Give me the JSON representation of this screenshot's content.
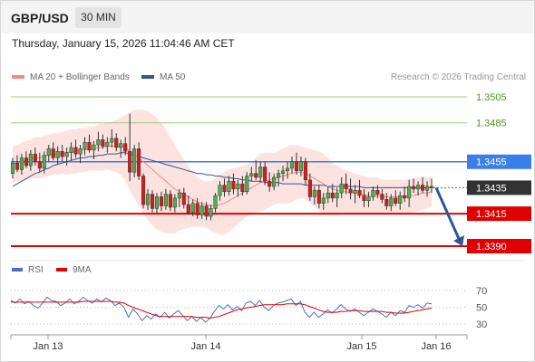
{
  "header": {
    "pair": "GBP/USD",
    "timeframe": "30 MIN"
  },
  "datetime": "Thursday, January 15, 2026 11:04:46 AM CET",
  "legend": {
    "ma20": {
      "label": "MA 20 + Bollinger Bands",
      "color": "#f28b82"
    },
    "ma50": {
      "label": "MA 50",
      "color": "#2f5597"
    },
    "credit": "Research © 2026 Trading Central"
  },
  "rsi_legend": {
    "rsi": {
      "label": "RSI",
      "color": "#4472c4"
    },
    "ma9": {
      "label": "9MA",
      "color": "#e00000"
    }
  },
  "chart_data": [
    {
      "type": "candlestick",
      "title": "",
      "ylim": [
        1.338,
        1.351
      ],
      "x_ticks": [
        "Jan 13",
        "Jan 14",
        "Jan 15",
        "Jan 16"
      ],
      "levels": [
        {
          "value": "1.3505",
          "kind": "target",
          "color": "#4a9a1e"
        },
        {
          "value": "1.3485",
          "kind": "target",
          "color": "#4a9a1e"
        },
        {
          "value": "1.3455",
          "kind": "resistance",
          "color": "#3a7ee8"
        },
        {
          "value": "1.3435",
          "kind": "last price",
          "color": "#333333"
        },
        {
          "value": "1.3415",
          "kind": "support",
          "color": "#e00000"
        },
        {
          "value": "1.3390",
          "kind": "support",
          "color": "#e00000"
        }
      ],
      "candles": [
        [
          1.3446,
          1.3458,
          1.3442,
          1.3454
        ],
        [
          1.3454,
          1.346,
          1.3447,
          1.3449
        ],
        [
          1.3449,
          1.3461,
          1.3445,
          1.3458
        ],
        [
          1.3458,
          1.3463,
          1.345,
          1.3452
        ],
        [
          1.3452,
          1.3464,
          1.3448,
          1.3461
        ],
        [
          1.3461,
          1.3466,
          1.3452,
          1.3455
        ],
        [
          1.3455,
          1.3462,
          1.3447,
          1.345
        ],
        [
          1.345,
          1.3463,
          1.3446,
          1.346
        ],
        [
          1.346,
          1.3468,
          1.3455,
          1.3465
        ],
        [
          1.3465,
          1.347,
          1.3456,
          1.3458
        ],
        [
          1.3458,
          1.3467,
          1.3453,
          1.3463
        ],
        [
          1.3463,
          1.3468,
          1.3455,
          1.3459
        ],
        [
          1.3459,
          1.3466,
          1.3452,
          1.3462
        ],
        [
          1.3462,
          1.347,
          1.3456,
          1.3466
        ],
        [
          1.3466,
          1.3472,
          1.3458,
          1.3461
        ],
        [
          1.3461,
          1.3468,
          1.3454,
          1.3465
        ],
        [
          1.3465,
          1.3474,
          1.346,
          1.347
        ],
        [
          1.347,
          1.3476,
          1.3462,
          1.3464
        ],
        [
          1.3464,
          1.3471,
          1.3457,
          1.3468
        ],
        [
          1.3468,
          1.3478,
          1.3463,
          1.3472
        ],
        [
          1.3472,
          1.3476,
          1.3465,
          1.3467
        ],
        [
          1.3467,
          1.3474,
          1.3462,
          1.347
        ],
        [
          1.347,
          1.348,
          1.3466,
          1.3473
        ],
        [
          1.3473,
          1.3477,
          1.3463,
          1.3466
        ],
        [
          1.3466,
          1.3472,
          1.3458,
          1.3469
        ],
        [
          1.3469,
          1.3474,
          1.346,
          1.3463
        ],
        [
          1.3463,
          1.3492,
          1.344,
          1.3447
        ],
        [
          1.3447,
          1.3468,
          1.3443,
          1.3465
        ],
        [
          1.3465,
          1.347,
          1.3441,
          1.3444
        ],
        [
          1.3444,
          1.3446,
          1.3419,
          1.3422
        ],
        [
          1.3422,
          1.3434,
          1.3418,
          1.343
        ],
        [
          1.343,
          1.3433,
          1.3416,
          1.3419
        ],
        [
          1.3419,
          1.3431,
          1.3415,
          1.3428
        ],
        [
          1.3428,
          1.3432,
          1.3417,
          1.3421
        ],
        [
          1.3421,
          1.3434,
          1.3418,
          1.343
        ],
        [
          1.343,
          1.3433,
          1.3417,
          1.342
        ],
        [
          1.342,
          1.343,
          1.3416,
          1.3427
        ],
        [
          1.3427,
          1.3434,
          1.342,
          1.3431
        ],
        [
          1.3431,
          1.3435,
          1.3419,
          1.3422
        ],
        [
          1.3422,
          1.3429,
          1.3414,
          1.3416
        ],
        [
          1.3416,
          1.3426,
          1.3413,
          1.3423
        ],
        [
          1.3423,
          1.3427,
          1.3411,
          1.3414
        ],
        [
          1.3414,
          1.3424,
          1.3411,
          1.3421
        ],
        [
          1.3421,
          1.3424,
          1.341,
          1.3413
        ],
        [
          1.3413,
          1.3422,
          1.341,
          1.3419
        ],
        [
          1.3419,
          1.3431,
          1.3416,
          1.3429
        ],
        [
          1.3429,
          1.344,
          1.3425,
          1.3437
        ],
        [
          1.3437,
          1.3442,
          1.3428,
          1.3432
        ],
        [
          1.3432,
          1.3444,
          1.3429,
          1.344
        ],
        [
          1.344,
          1.3446,
          1.343,
          1.3434
        ],
        [
          1.3434,
          1.3441,
          1.3428,
          1.3438
        ],
        [
          1.3438,
          1.3444,
          1.3429,
          1.3432
        ],
        [
          1.3432,
          1.3447,
          1.343,
          1.3444
        ],
        [
          1.3444,
          1.3451,
          1.344,
          1.3446
        ],
        [
          1.3446,
          1.3456,
          1.3441,
          1.3443
        ],
        [
          1.3443,
          1.3455,
          1.3439,
          1.3451
        ],
        [
          1.3451,
          1.3455,
          1.3437,
          1.344
        ],
        [
          1.344,
          1.3447,
          1.3432,
          1.3436
        ],
        [
          1.3436,
          1.3446,
          1.3433,
          1.3443
        ],
        [
          1.3443,
          1.3449,
          1.3436,
          1.3446
        ],
        [
          1.3446,
          1.3452,
          1.344,
          1.3448
        ],
        [
          1.3448,
          1.3455,
          1.3442,
          1.345
        ],
        [
          1.345,
          1.3459,
          1.3446,
          1.3455
        ],
        [
          1.3455,
          1.3462,
          1.3445,
          1.3448
        ],
        [
          1.3448,
          1.3459,
          1.3444,
          1.3455
        ],
        [
          1.3455,
          1.3458,
          1.3437,
          1.3441
        ],
        [
          1.3441,
          1.3446,
          1.3425,
          1.3428
        ],
        [
          1.3428,
          1.3436,
          1.3422,
          1.3433
        ],
        [
          1.3433,
          1.3437,
          1.3419,
          1.3423
        ],
        [
          1.3423,
          1.3431,
          1.3418,
          1.3427
        ],
        [
          1.3427,
          1.3436,
          1.3423,
          1.3431
        ],
        [
          1.3431,
          1.3438,
          1.3424,
          1.3427
        ],
        [
          1.3427,
          1.3435,
          1.342,
          1.3431
        ],
        [
          1.3431,
          1.3443,
          1.3427,
          1.3438
        ],
        [
          1.3438,
          1.3446,
          1.343,
          1.3434
        ],
        [
          1.3434,
          1.3442,
          1.3426,
          1.3431
        ],
        [
          1.3431,
          1.3437,
          1.3423,
          1.3433
        ],
        [
          1.3433,
          1.3441,
          1.3427,
          1.3429
        ],
        [
          1.3429,
          1.3434,
          1.342,
          1.3425
        ],
        [
          1.3425,
          1.3432,
          1.342,
          1.3428
        ],
        [
          1.3428,
          1.3436,
          1.3425,
          1.3433
        ],
        [
          1.3433,
          1.3437,
          1.3427,
          1.343
        ],
        [
          1.343,
          1.3434,
          1.3423,
          1.3426
        ],
        [
          1.3426,
          1.3431,
          1.3418,
          1.3421
        ],
        [
          1.3421,
          1.343,
          1.3417,
          1.3427
        ],
        [
          1.3427,
          1.3433,
          1.3421,
          1.3423
        ],
        [
          1.3423,
          1.3432,
          1.3418,
          1.3429
        ],
        [
          1.3429,
          1.3436,
          1.3424,
          1.3427
        ],
        [
          1.3427,
          1.3441,
          1.342,
          1.3436
        ],
        [
          1.3436,
          1.3442,
          1.3431,
          1.3434
        ],
        [
          1.3434,
          1.344,
          1.3429,
          1.3437
        ],
        [
          1.3437,
          1.3443,
          1.3431,
          1.3433
        ],
        [
          1.3433,
          1.344,
          1.3428,
          1.3436
        ],
        [
          1.3436,
          1.3442,
          1.3431,
          1.3435
        ]
      ],
      "ma20": [
        1.3453,
        1.3454,
        1.3455,
        1.3456,
        1.3457,
        1.3458,
        1.3458,
        1.3459,
        1.346,
        1.3461,
        1.3461,
        1.3462,
        1.3462,
        1.3463,
        1.3463,
        1.3464,
        1.3464,
        1.3465,
        1.3465,
        1.3466,
        1.3466,
        1.3467,
        1.3467,
        1.3467,
        1.3467,
        1.3466,
        1.3463,
        1.3461,
        1.3458,
        1.3455,
        1.3452,
        1.3449,
        1.3446,
        1.3443,
        1.344,
        1.3437,
        1.3434,
        1.3432,
        1.343,
        1.3428,
        1.3426,
        1.3424,
        1.3423,
        1.3422,
        1.3421,
        1.3421,
        1.3422,
        1.3423,
        1.3425,
        1.3427,
        1.3429,
        1.3431,
        1.3433,
        1.3435,
        1.3437,
        1.3439,
        1.344,
        1.3441,
        1.3442,
        1.3443,
        1.3444,
        1.3445,
        1.3446,
        1.3447,
        1.3447,
        1.3446,
        1.3444,
        1.3442,
        1.344,
        1.3438,
        1.3436,
        1.3434,
        1.3433,
        1.3432,
        1.3432,
        1.3431,
        1.3431,
        1.343,
        1.343,
        1.3429,
        1.3429,
        1.3429,
        1.3428,
        1.3428,
        1.3428,
        1.3428,
        1.3428,
        1.3428,
        1.3429,
        1.3429,
        1.343,
        1.3431,
        1.3431,
        1.3432
      ],
      "bb_width": [
        0.0014,
        0.0014,
        0.0015,
        0.0015,
        0.0015,
        0.0016,
        0.0016,
        0.0016,
        0.0016,
        0.0016,
        0.0016,
        0.0016,
        0.0017,
        0.0017,
        0.0017,
        0.0017,
        0.0017,
        0.0017,
        0.0017,
        0.0018,
        0.0018,
        0.0018,
        0.0019,
        0.002,
        0.0022,
        0.0025,
        0.003,
        0.0034,
        0.0037,
        0.004,
        0.0042,
        0.0043,
        0.0043,
        0.0042,
        0.004,
        0.0037,
        0.0034,
        0.003,
        0.0027,
        0.0024,
        0.0021,
        0.0019,
        0.0018,
        0.0018,
        0.0019,
        0.0021,
        0.0023,
        0.0024,
        0.0024,
        0.0023,
        0.0022,
        0.0021,
        0.002,
        0.002,
        0.0021,
        0.0022,
        0.0022,
        0.0021,
        0.002,
        0.002,
        0.0021,
        0.0022,
        0.0022,
        0.0021,
        0.002,
        0.002,
        0.0021,
        0.0022,
        0.0023,
        0.0023,
        0.0022,
        0.002,
        0.0019,
        0.0018,
        0.0017,
        0.0016,
        0.0015,
        0.0015,
        0.0014,
        0.0014,
        0.0014,
        0.0014,
        0.0013,
        0.0013,
        0.0013,
        0.0013,
        0.0013,
        0.0013,
        0.0013,
        0.0013,
        0.0013,
        0.0013,
        0.0012,
        0.0012
      ],
      "ma50": [
        1.3436,
        1.3438,
        1.344,
        1.3442,
        1.3444,
        1.3446,
        1.3447,
        1.3449,
        1.345,
        1.3452,
        1.3453,
        1.3454,
        1.3455,
        1.3456,
        1.3457,
        1.3458,
        1.3458,
        1.3459,
        1.3459,
        1.346,
        1.346,
        1.3461,
        1.3461,
        1.3461,
        1.3462,
        1.3462,
        1.3461,
        1.346,
        1.3459,
        1.3458,
        1.3457,
        1.3456,
        1.3455,
        1.3454,
        1.3453,
        1.3452,
        1.3451,
        1.345,
        1.3449,
        1.3448,
        1.3447,
        1.3446,
        1.3446,
        1.3445,
        1.3445,
        1.3444,
        1.3444,
        1.3443,
        1.3443,
        1.3442,
        1.3442,
        1.3441,
        1.3441,
        1.344,
        1.344,
        1.344,
        1.3439,
        1.3439,
        1.3439,
        1.3439,
        1.3438,
        1.3438,
        1.3438,
        1.3438,
        1.3438,
        1.3437,
        1.3437,
        1.3437,
        1.3437,
        1.3437,
        1.3436,
        1.3436,
        1.3436,
        1.3436,
        1.3436,
        1.3436,
        1.3436,
        1.3436,
        1.3435,
        1.3435,
        1.3435,
        1.3435,
        1.3435,
        1.3435,
        1.3435,
        1.3435,
        1.3435,
        1.3435,
        1.3435,
        1.3435,
        1.3435,
        1.3435,
        1.3435,
        1.3435
      ],
      "forecast_arrow": {
        "from": 1.3435,
        "to": 1.339
      }
    },
    {
      "type": "line",
      "title": "",
      "ylim": [
        25,
        75
      ],
      "y_ticks": [
        "70",
        "50",
        "30"
      ],
      "series": [
        {
          "name": "RSI",
          "color": "#4472c4",
          "values": [
            58,
            55,
            60,
            54,
            57,
            52,
            49,
            55,
            62,
            58,
            57,
            52,
            55,
            60,
            54,
            57,
            62,
            58,
            55,
            60,
            56,
            61,
            58,
            52,
            55,
            50,
            38,
            48,
            42,
            34,
            40,
            36,
            42,
            38,
            44,
            37,
            42,
            46,
            40,
            34,
            39,
            33,
            38,
            32,
            37,
            45,
            52,
            48,
            53,
            47,
            51,
            46,
            55,
            57,
            52,
            58,
            50,
            46,
            52,
            55,
            56,
            58,
            60,
            52,
            57,
            44,
            38,
            44,
            38,
            42,
            47,
            43,
            48,
            53,
            48,
            45,
            48,
            44,
            40,
            44,
            48,
            45,
            42,
            38,
            44,
            40,
            46,
            44,
            52,
            50,
            53,
            49,
            55,
            54
          ]
        },
        {
          "name": "9MA",
          "color": "#e00000",
          "values": [
            56,
            56,
            56,
            56,
            56,
            56,
            56,
            56,
            56,
            56,
            56,
            56,
            56,
            56,
            56,
            56,
            57,
            57,
            57,
            57,
            57,
            57,
            57,
            56,
            56,
            55,
            52,
            50,
            48,
            46,
            44,
            42,
            40,
            39,
            39,
            39,
            39,
            39,
            39,
            39,
            39,
            38,
            38,
            38,
            37,
            38,
            39,
            41,
            43,
            45,
            47,
            48,
            49,
            50,
            51,
            52,
            53,
            53,
            53,
            53,
            53,
            54,
            54,
            54,
            54,
            53,
            51,
            49,
            47,
            45,
            44,
            44,
            44,
            45,
            45,
            46,
            46,
            46,
            45,
            45,
            45,
            45,
            45,
            44,
            44,
            43,
            43,
            43,
            44,
            45,
            46,
            47,
            48,
            49
          ]
        }
      ]
    }
  ]
}
